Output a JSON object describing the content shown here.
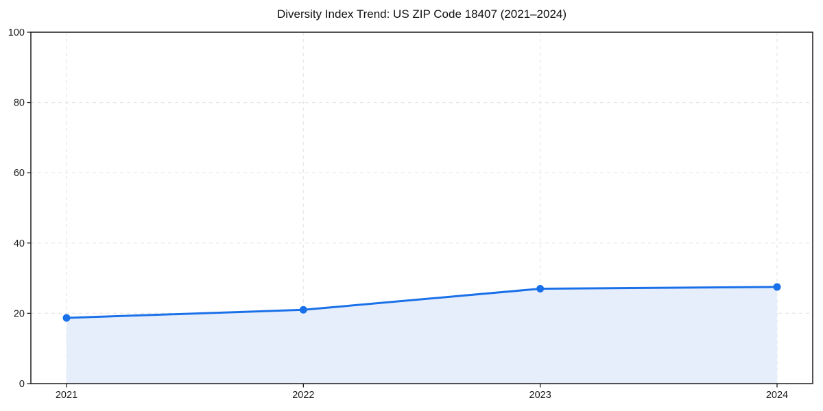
{
  "chart_data": {
    "type": "line",
    "title": "Diversity Index Trend: US ZIP Code 18407 (2021–2024)",
    "xlabel": "",
    "ylabel": "",
    "categories": [
      "2021",
      "2022",
      "2023",
      "2024"
    ],
    "series": [
      {
        "name": "Diversity Index",
        "values": [
          18.7,
          21.0,
          27.0,
          27.5
        ]
      }
    ],
    "ylim": [
      0,
      100
    ],
    "yticks": [
      0,
      20,
      40,
      60,
      80,
      100
    ],
    "grid": true,
    "grid_style": "dashed",
    "legend_position": "none",
    "area_fill": true,
    "colors": {
      "line": "#1a70e8",
      "marker": "#1a70e8",
      "area": "#e6eefb",
      "gridline": "#e6e6e6",
      "spine": "#1a1a1a",
      "tick_label": "#1a1a1a",
      "title": "#111111",
      "background": "#ffffff"
    }
  }
}
